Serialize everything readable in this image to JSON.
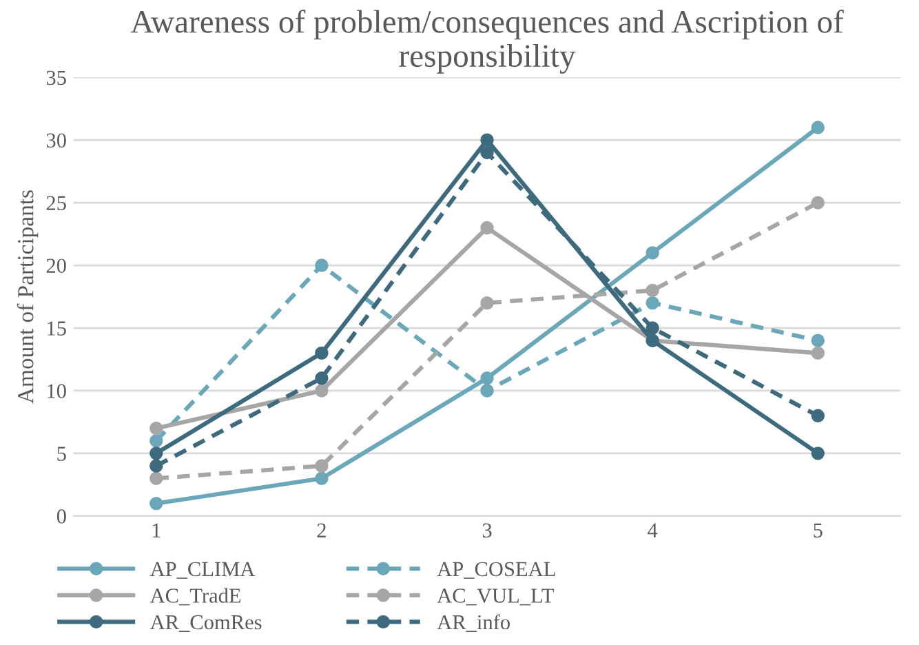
{
  "chart_data": {
    "type": "line",
    "title": "Awareness of problem/consequences and Ascription of responsibility",
    "ylabel": "Amount of Participants",
    "categories": [
      "1",
      "2",
      "3",
      "4",
      "5"
    ],
    "ylim": [
      0,
      35
    ],
    "yticks": [
      0,
      5,
      10,
      15,
      20,
      25,
      30,
      35
    ],
    "grid": "y",
    "legend": "bottom left",
    "marker": "circle",
    "series": [
      {
        "name": "AP_CLIMA",
        "color": "#6aa7b8",
        "line_style": "solid",
        "values": [
          1,
          3,
          11,
          21,
          31
        ]
      },
      {
        "name": "AP_COSEAL",
        "color": "#6aa7b8",
        "line_style": "dashed",
        "values": [
          6,
          20,
          10,
          17,
          14
        ]
      },
      {
        "name": "AC_TradE",
        "color": "#a6a6a6",
        "line_style": "solid",
        "values": [
          7,
          10,
          23,
          14,
          13
        ]
      },
      {
        "name": "AC_VUL_LT",
        "color": "#a6a6a6",
        "line_style": "dashed",
        "values": [
          3,
          4,
          17,
          18,
          25
        ]
      },
      {
        "name": "AR_ComRes",
        "color": "#3d6b7d",
        "line_style": "solid",
        "values": [
          5,
          13,
          30,
          14,
          5
        ]
      },
      {
        "name": "AR_info",
        "color": "#3d6b7d",
        "line_style": "dashed",
        "values": [
          4,
          11,
          29,
          15,
          8
        ]
      }
    ]
  }
}
